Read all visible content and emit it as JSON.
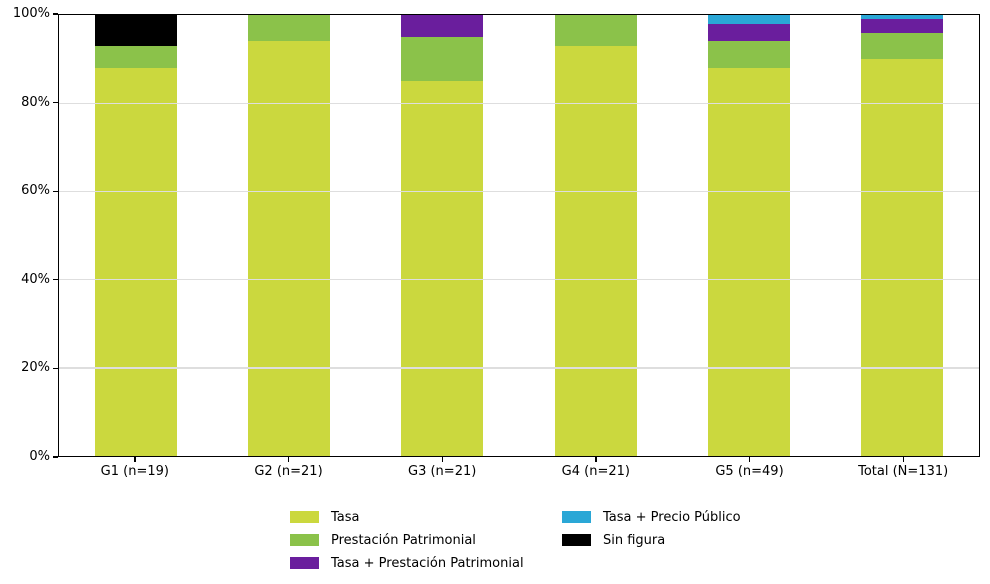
{
  "chart_data": {
    "type": "bar",
    "subtype": "stacked-100-percent",
    "title": "",
    "xlabel": "",
    "ylabel": "",
    "ylim": [
      0,
      100
    ],
    "grid": true,
    "legend_position": "bottom",
    "categories": [
      "G1 (n=19)",
      "G2 (n=21)",
      "G3 (n=21)",
      "G4 (n=21)",
      "G5 (n=49)",
      "Total (N=131)"
    ],
    "series": [
      {
        "name": "Tasa",
        "color": "#cbd83e",
        "values": [
          88,
          94,
          85,
          93,
          88,
          90
        ]
      },
      {
        "name": "Prestación Patrimonial",
        "color": "#8bc24a",
        "values": [
          5,
          6,
          10,
          7,
          6,
          6
        ]
      },
      {
        "name": "Tasa + Prestación Patrimonial",
        "color": "#6a1e9d",
        "values": [
          0,
          0,
          5,
          0,
          4,
          3
        ]
      },
      {
        "name": "Tasa + Precio Público",
        "color": "#2aa7d6",
        "values": [
          0,
          0,
          0,
          0,
          2,
          1
        ]
      },
      {
        "name": "Sin figura",
        "color": "#000000",
        "values": [
          7,
          0,
          0,
          0,
          0,
          0
        ]
      }
    ],
    "y_ticks": [
      {
        "label": "0%",
        "value": 0
      },
      {
        "label": "20%",
        "value": 20
      },
      {
        "label": "40%",
        "value": 40
      },
      {
        "label": "60%",
        "value": 60
      },
      {
        "label": "80%",
        "value": 80
      },
      {
        "label": "100%",
        "value": 100
      }
    ],
    "legend_columns": [
      [
        "Tasa",
        "Prestación Patrimonial",
        "Tasa + Prestación Patrimonial"
      ],
      [
        "Tasa + Precio Público",
        "Sin figura"
      ]
    ],
    "colors": {
      "background": "#ffffff",
      "spine": "#000000",
      "grid": "#dedede",
      "text": "#000000"
    }
  }
}
